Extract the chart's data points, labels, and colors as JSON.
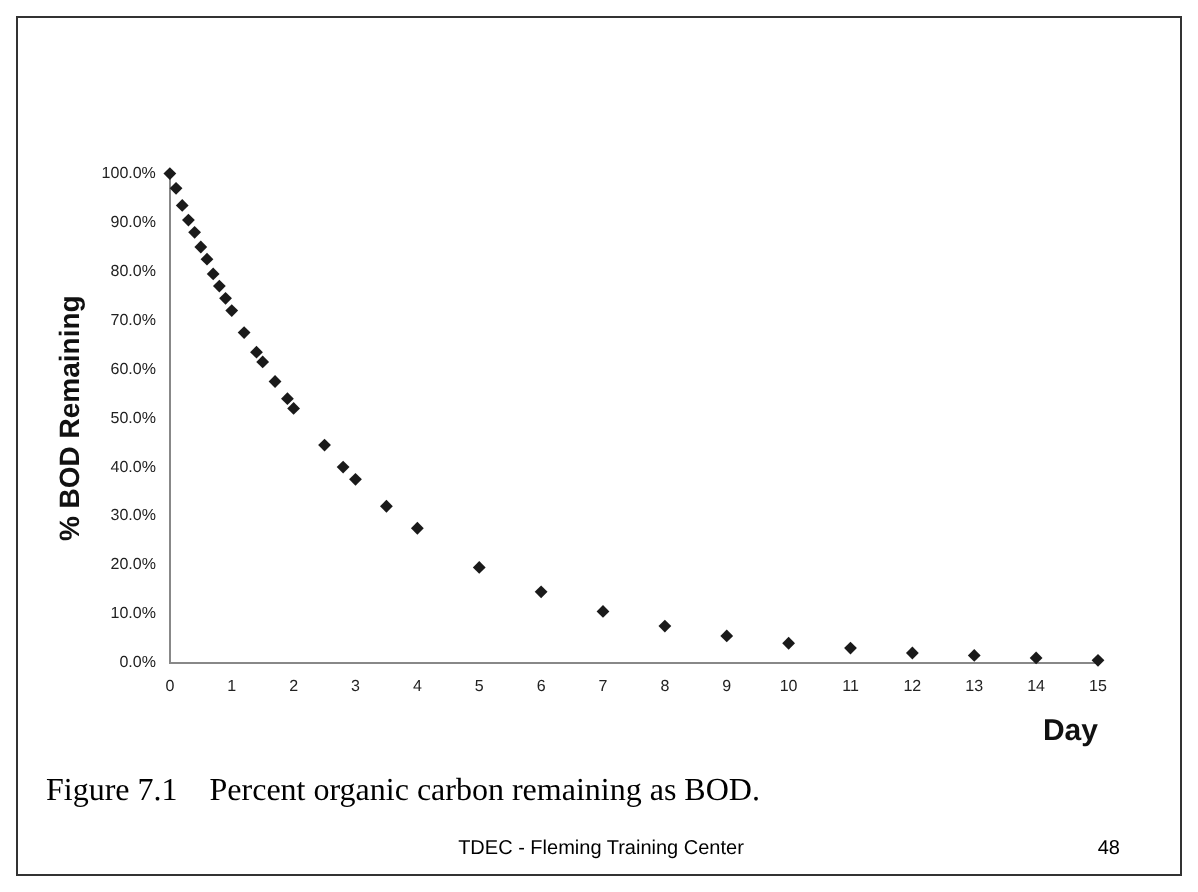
{
  "chart_data": {
    "type": "scatter",
    "xlabel": "Day",
    "ylabel": "% BOD Remaining",
    "x": [
      0,
      0.1,
      0.2,
      0.3,
      0.4,
      0.5,
      0.6,
      0.7,
      0.8,
      0.9,
      1.0,
      1.2,
      1.4,
      1.5,
      1.7,
      1.9,
      2.0,
      2.5,
      2.8,
      3.0,
      3.5,
      4,
      5,
      6,
      7,
      8,
      9,
      10,
      11,
      12,
      13,
      14,
      15
    ],
    "series": [
      {
        "color": "#1a1a1a",
        "values": [
          100,
          97,
          93.5,
          90.5,
          88,
          85,
          82.5,
          79.5,
          77,
          74.5,
          72,
          67.5,
          63.5,
          61.5,
          57.5,
          54,
          52,
          44.5,
          40,
          37.5,
          32,
          27.5,
          19.5,
          14.5,
          10.5,
          7.5,
          5.5,
          4,
          3,
          2,
          1.5,
          1,
          0.5
        ]
      }
    ],
    "xlim": [
      0,
      15
    ],
    "xticks": [
      0,
      1,
      2,
      3,
      4,
      5,
      6,
      7,
      8,
      9,
      10,
      11,
      12,
      13,
      14,
      15
    ],
    "ylim": [
      0,
      100
    ],
    "yticks": [
      {
        "value": 0,
        "label": "0.0%"
      },
      {
        "value": 10,
        "label": "10.0%"
      },
      {
        "value": 20,
        "label": "20.0%"
      },
      {
        "value": 30,
        "label": "30.0%"
      },
      {
        "value": 40,
        "label": "40.0%"
      },
      {
        "value": 50,
        "label": "50.0%"
      },
      {
        "value": 60,
        "label": "60.0%"
      },
      {
        "value": 70,
        "label": "70.0%"
      },
      {
        "value": 80,
        "label": "80.0%"
      },
      {
        "value": 90,
        "label": "90.0%"
      },
      {
        "value": 100,
        "label": "100.0%"
      }
    ],
    "grid": false,
    "legend": false,
    "marker": "diamond",
    "annotations": [
      "Figure 7.1    Percent organic carbon remaining as BOD.",
      "TDEC - Fleming Training Center",
      "48"
    ]
  }
}
